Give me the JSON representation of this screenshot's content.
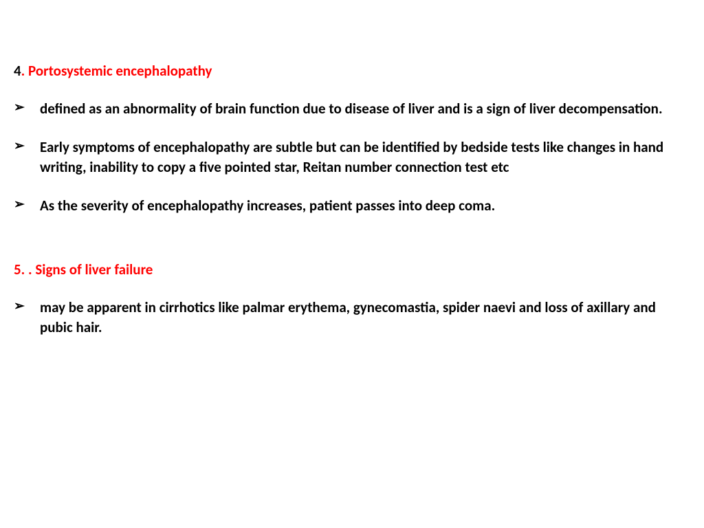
{
  "colors": {
    "heading": "#ff0000",
    "body_text": "#000000",
    "background": "#ffffff"
  },
  "typography": {
    "font_family": "Calibri, Arial, sans-serif",
    "heading_fontsize": 21,
    "body_fontsize": 21,
    "font_weight": "bold"
  },
  "section1": {
    "number": "4",
    "title": ". Portosystemic encephalopathy",
    "bullets": [
      " defined as an abnormality of brain function due to disease of liver and is a sign of liver decompensation.",
      " Early symptoms of encephalopathy are subtle but can be identified by bedside tests like changes in hand writing, inability to copy a five pointed star, Reitan number connection test etc",
      "As the severity of encephalopathy increases, patient passes into deep coma."
    ]
  },
  "section2": {
    "number": "5. ",
    "title": ". Signs of liver failure",
    "bullets": [
      "may be apparent in cirrhotics like palmar erythema, gynecomastia, spider naevi and loss of axillary and pubic hair."
    ]
  },
  "bullet_marker": "➢"
}
